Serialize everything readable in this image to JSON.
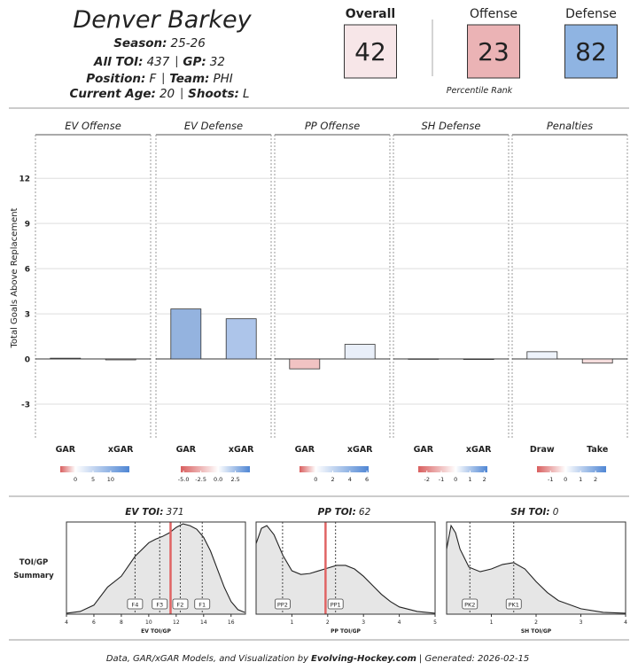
{
  "header": {
    "name": "Denver Barkey",
    "info": [
      [
        {
          "label": "Season:",
          "value": "25-26"
        }
      ],
      [
        {
          "label": "All TOI:",
          "value": 437
        },
        {
          "label": "GP:",
          "value": 32
        }
      ],
      [
        {
          "label": "Position:",
          "value": "F"
        },
        {
          "label": "Team:",
          "value": "PHI"
        }
      ],
      [
        {
          "label": "Current Age:",
          "value": 20
        },
        {
          "label": "Shoots:",
          "value": "L"
        }
      ]
    ]
  },
  "percentiles": {
    "items": [
      {
        "label": "Overall",
        "value": 42,
        "color": "#f7e6e8"
      },
      {
        "label": "Offense",
        "value": 23,
        "color": "#ebb3b5"
      },
      {
        "label": "Defense",
        "value": 82,
        "color": "#8fb4e2"
      }
    ],
    "note": "Percentile Rank"
  },
  "chart_data": [
    {
      "type": "bar",
      "y_label": "Total Goals Above Replacement",
      "ylim": [
        -5.3,
        14.9
      ],
      "yticks": [
        -3,
        0,
        3,
        6,
        9,
        12
      ],
      "grid": true,
      "panels": [
        {
          "title": "EV Offense",
          "categories": [
            "GAR",
            "xGAR"
          ],
          "values": [
            0.05,
            -0.06
          ],
          "colors": [
            "#eef2f9",
            "#f6e4e4"
          ],
          "scale": {
            "lim": [
              -4.3,
              15.3
            ],
            "ticks": [
              0,
              5,
              10
            ],
            "colors": [
              "#d95f5f",
              "#ffffff",
              "#4f86d4"
            ]
          }
        },
        {
          "title": "EV Defense",
          "categories": [
            "GAR",
            "xGAR"
          ],
          "values": [
            3.32,
            2.67
          ],
          "colors": [
            "#94b3df",
            "#adc5ea"
          ],
          "scale": {
            "lim": [
              -5.4,
              4.6
            ],
            "ticks": [
              {
                "value": -5,
                "label": "-5.0"
              },
              -2.5,
              {
                "value": 0,
                "label": "0.0"
              },
              2.5
            ],
            "colors": [
              "#d95f5f",
              "#ffffff",
              "#4f86d4"
            ]
          }
        },
        {
          "title": "PP Offense",
          "categories": [
            "GAR",
            "xGAR"
          ],
          "values": [
            -0.66,
            0.97
          ],
          "colors": [
            "#f1c3c3",
            "#e9eff9"
          ],
          "scale": {
            "lim": [
              -1.9,
              6.2
            ],
            "ticks": [
              0,
              2,
              4,
              6
            ],
            "colors": [
              "#d95f5f",
              "#ffffff",
              "#4f86d4"
            ]
          }
        },
        {
          "title": "SH Defense",
          "categories": [
            "GAR",
            "xGAR"
          ],
          "values": [
            0.01,
            -0.01
          ],
          "colors": [
            "#ffffff",
            "#ffffff"
          ],
          "scale": {
            "lim": [
              -2.6,
              2.2
            ],
            "ticks": [
              -2,
              -1,
              0,
              1,
              2
            ],
            "colors": [
              "#d95f5f",
              "#ffffff",
              "#4f86d4"
            ]
          }
        },
        {
          "title": "Penalties",
          "categories": [
            "Draw",
            "Take"
          ],
          "values": [
            0.48,
            -0.28
          ],
          "colors": [
            "#eef3fb",
            "#f5dddd"
          ],
          "scale": {
            "lim": [
              -1.9,
              2.7
            ],
            "ticks": [
              -1,
              0,
              1,
              2
            ],
            "colors": [
              "#d95f5f",
              "#ffffff",
              "#4f86d4"
            ]
          }
        }
      ]
    },
    {
      "type": "area",
      "side_label": [
        "TOI/GP",
        "Summary"
      ],
      "ylim": [
        0,
        1.02
      ],
      "color": "#e6e6e6",
      "player_color": "#e06464",
      "panels": [
        {
          "title": "EV TOI:",
          "total": 371,
          "x_label": "EV TOI/GP",
          "xlim": [
            4,
            17.05
          ],
          "xticks": [
            4,
            6,
            8,
            10,
            12,
            14,
            16
          ],
          "x": [
            4,
            5,
            6,
            7,
            8,
            9,
            10,
            10.5,
            11,
            11.5,
            12,
            12.5,
            13,
            13.5,
            14,
            14.5,
            15,
            15.5,
            16,
            16.5,
            17
          ],
          "y": [
            0.01,
            0.03,
            0.1,
            0.3,
            0.42,
            0.64,
            0.79,
            0.83,
            0.86,
            0.9,
            0.96,
            1.0,
            0.98,
            0.94,
            0.85,
            0.7,
            0.5,
            0.3,
            0.14,
            0.05,
            0.02
          ],
          "ref_lines": [
            {
              "label": "F4",
              "x": 9.0
            },
            {
              "label": "F3",
              "x": 10.8
            },
            {
              "label": "F2",
              "x": 12.3
            },
            {
              "label": "F1",
              "x": 13.9
            }
          ],
          "player_x": 11.59
        },
        {
          "title": "PP TOI:",
          "total": 62,
          "x_label": "PP TOI/GP",
          "xlim": [
            0,
            5
          ],
          "xticks": [
            1,
            2,
            3,
            4,
            5
          ],
          "x": [
            0,
            0.15,
            0.3,
            0.5,
            0.75,
            1,
            1.25,
            1.5,
            1.75,
            2,
            2.25,
            2.5,
            2.75,
            3,
            3.25,
            3.5,
            3.75,
            4,
            4.5,
            5
          ],
          "y": [
            0.78,
            0.95,
            0.98,
            0.88,
            0.65,
            0.48,
            0.44,
            0.45,
            0.48,
            0.51,
            0.54,
            0.54,
            0.5,
            0.42,
            0.32,
            0.22,
            0.14,
            0.08,
            0.03,
            0.01
          ],
          "ref_lines": [
            {
              "label": "PP2",
              "x": 0.74
            },
            {
              "label": "PP1",
              "x": 2.22
            }
          ],
          "player_x": 1.94
        },
        {
          "title": "SH TOI:",
          "total": 0,
          "x_label": "SH TOI/GP",
          "xlim": [
            0,
            4
          ],
          "xticks": [
            1,
            2,
            3,
            4
          ],
          "x": [
            0,
            0.1,
            0.2,
            0.3,
            0.5,
            0.75,
            1,
            1.25,
            1.5,
            1.75,
            2,
            2.25,
            2.5,
            3,
            3.5,
            4
          ],
          "y": [
            0.72,
            0.98,
            0.9,
            0.72,
            0.52,
            0.47,
            0.5,
            0.55,
            0.57,
            0.5,
            0.36,
            0.24,
            0.15,
            0.06,
            0.02,
            0.01
          ],
          "ref_lines": [
            {
              "label": "PK2",
              "x": 0.52
            },
            {
              "label": "PK1",
              "x": 1.5
            }
          ]
        }
      ]
    }
  ],
  "footer": {
    "text": "Data, GAR/xGAR Models, and Visualization by",
    "site": "Evolving-Hockey.com",
    "generated": "| Generated: 2026-02-15"
  }
}
